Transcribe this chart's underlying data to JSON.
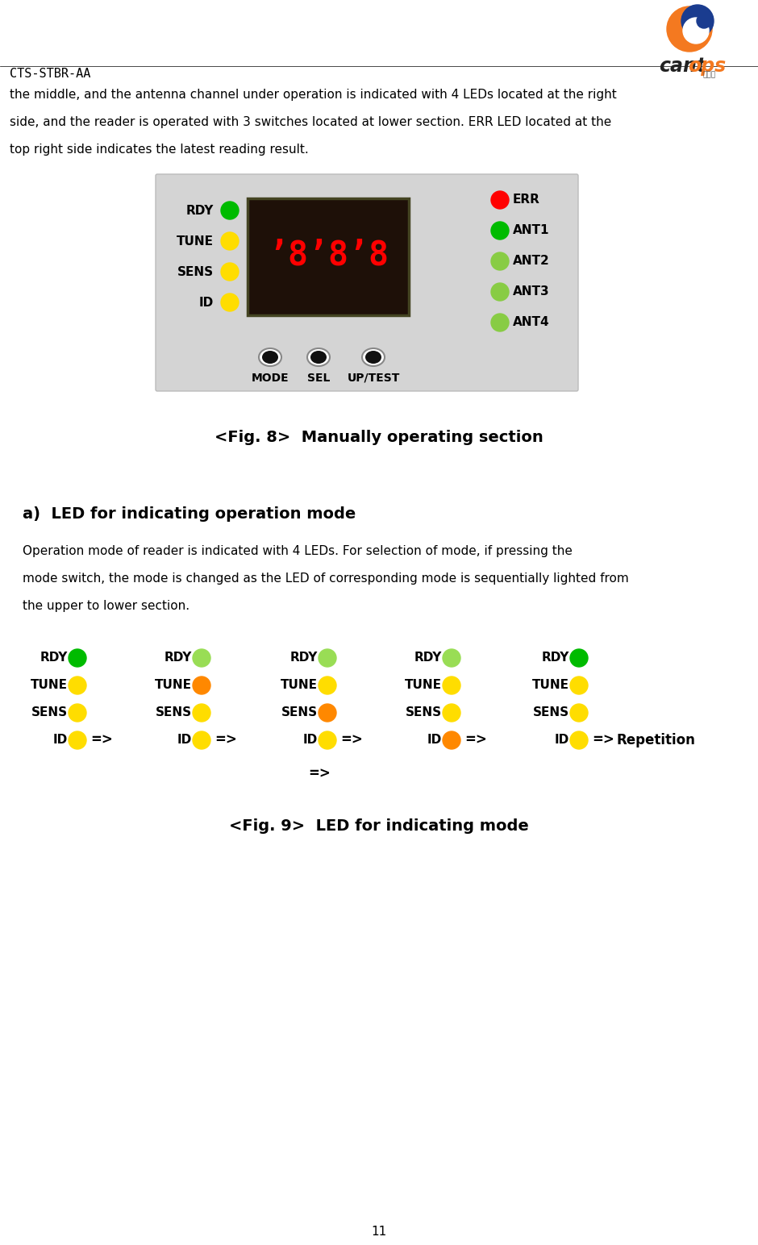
{
  "title_text": "CTS-STBR-AA",
  "body_lines": [
    "the middle, and the antenna channel under operation is indicated with 4 LEDs located at the right",
    "side, and the reader is operated with 3 switches located at lower section. ERR LED located at the",
    "top right side indicates the latest reading result."
  ],
  "fig8_caption": "<Fig. 8>  Manually operating section",
  "section_a_title": "a)  LED for indicating operation mode",
  "section_a_body": [
    "Operation mode of reader is indicated with 4 LEDs. For selection of mode, if pressing the",
    "mode switch, the mode is changed as the LED of corresponding mode is sequentially lighted from",
    "the upper to lower section."
  ],
  "fig9_caption": "<Fig. 9>  LED for indicating mode",
  "page_number": "11",
  "panel_bg": "#d4d4d4",
  "display_bg": "#1e1008",
  "display_text_color": "#ff0000",
  "left_leds": [
    {
      "label": "RDY",
      "color": "#00bb00"
    },
    {
      "label": "TUNE",
      "color": "#ffdd00"
    },
    {
      "label": "SENS",
      "color": "#ffdd00"
    },
    {
      "label": "ID",
      "color": "#ffdd00"
    }
  ],
  "right_leds": [
    {
      "label": "ERR",
      "color": "#ff0000"
    },
    {
      "label": "ANT1",
      "color": "#00bb00"
    },
    {
      "label": "ANT2",
      "color": "#88cc44"
    },
    {
      "label": "ANT3",
      "color": "#88cc44"
    },
    {
      "label": "ANT4",
      "color": "#88cc44"
    }
  ],
  "switches": [
    "MODE",
    "SEL",
    "UP/TEST"
  ],
  "fig9_cols": [
    {
      "rdy": "#00bb00",
      "tune": "#ffdd00",
      "sens": "#ffdd00",
      "id": "#ffdd00",
      "active_row": 0
    },
    {
      "rdy": "#99dd55",
      "tune": "#ff8800",
      "sens": "#ffdd00",
      "id": "#ffdd00",
      "active_row": 1
    },
    {
      "rdy": "#99dd55",
      "tune": "#ffdd00",
      "sens": "#ff8800",
      "id": "#ffdd00",
      "active_row": 2
    },
    {
      "rdy": "#99dd55",
      "tune": "#ffdd00",
      "sens": "#ffdd00",
      "id": "#ff8800",
      "active_row": 3
    },
    {
      "rdy": "#00bb00",
      "tune": "#ffdd00",
      "sens": "#ffdd00",
      "id": "#ffdd00",
      "active_row": -1
    }
  ]
}
